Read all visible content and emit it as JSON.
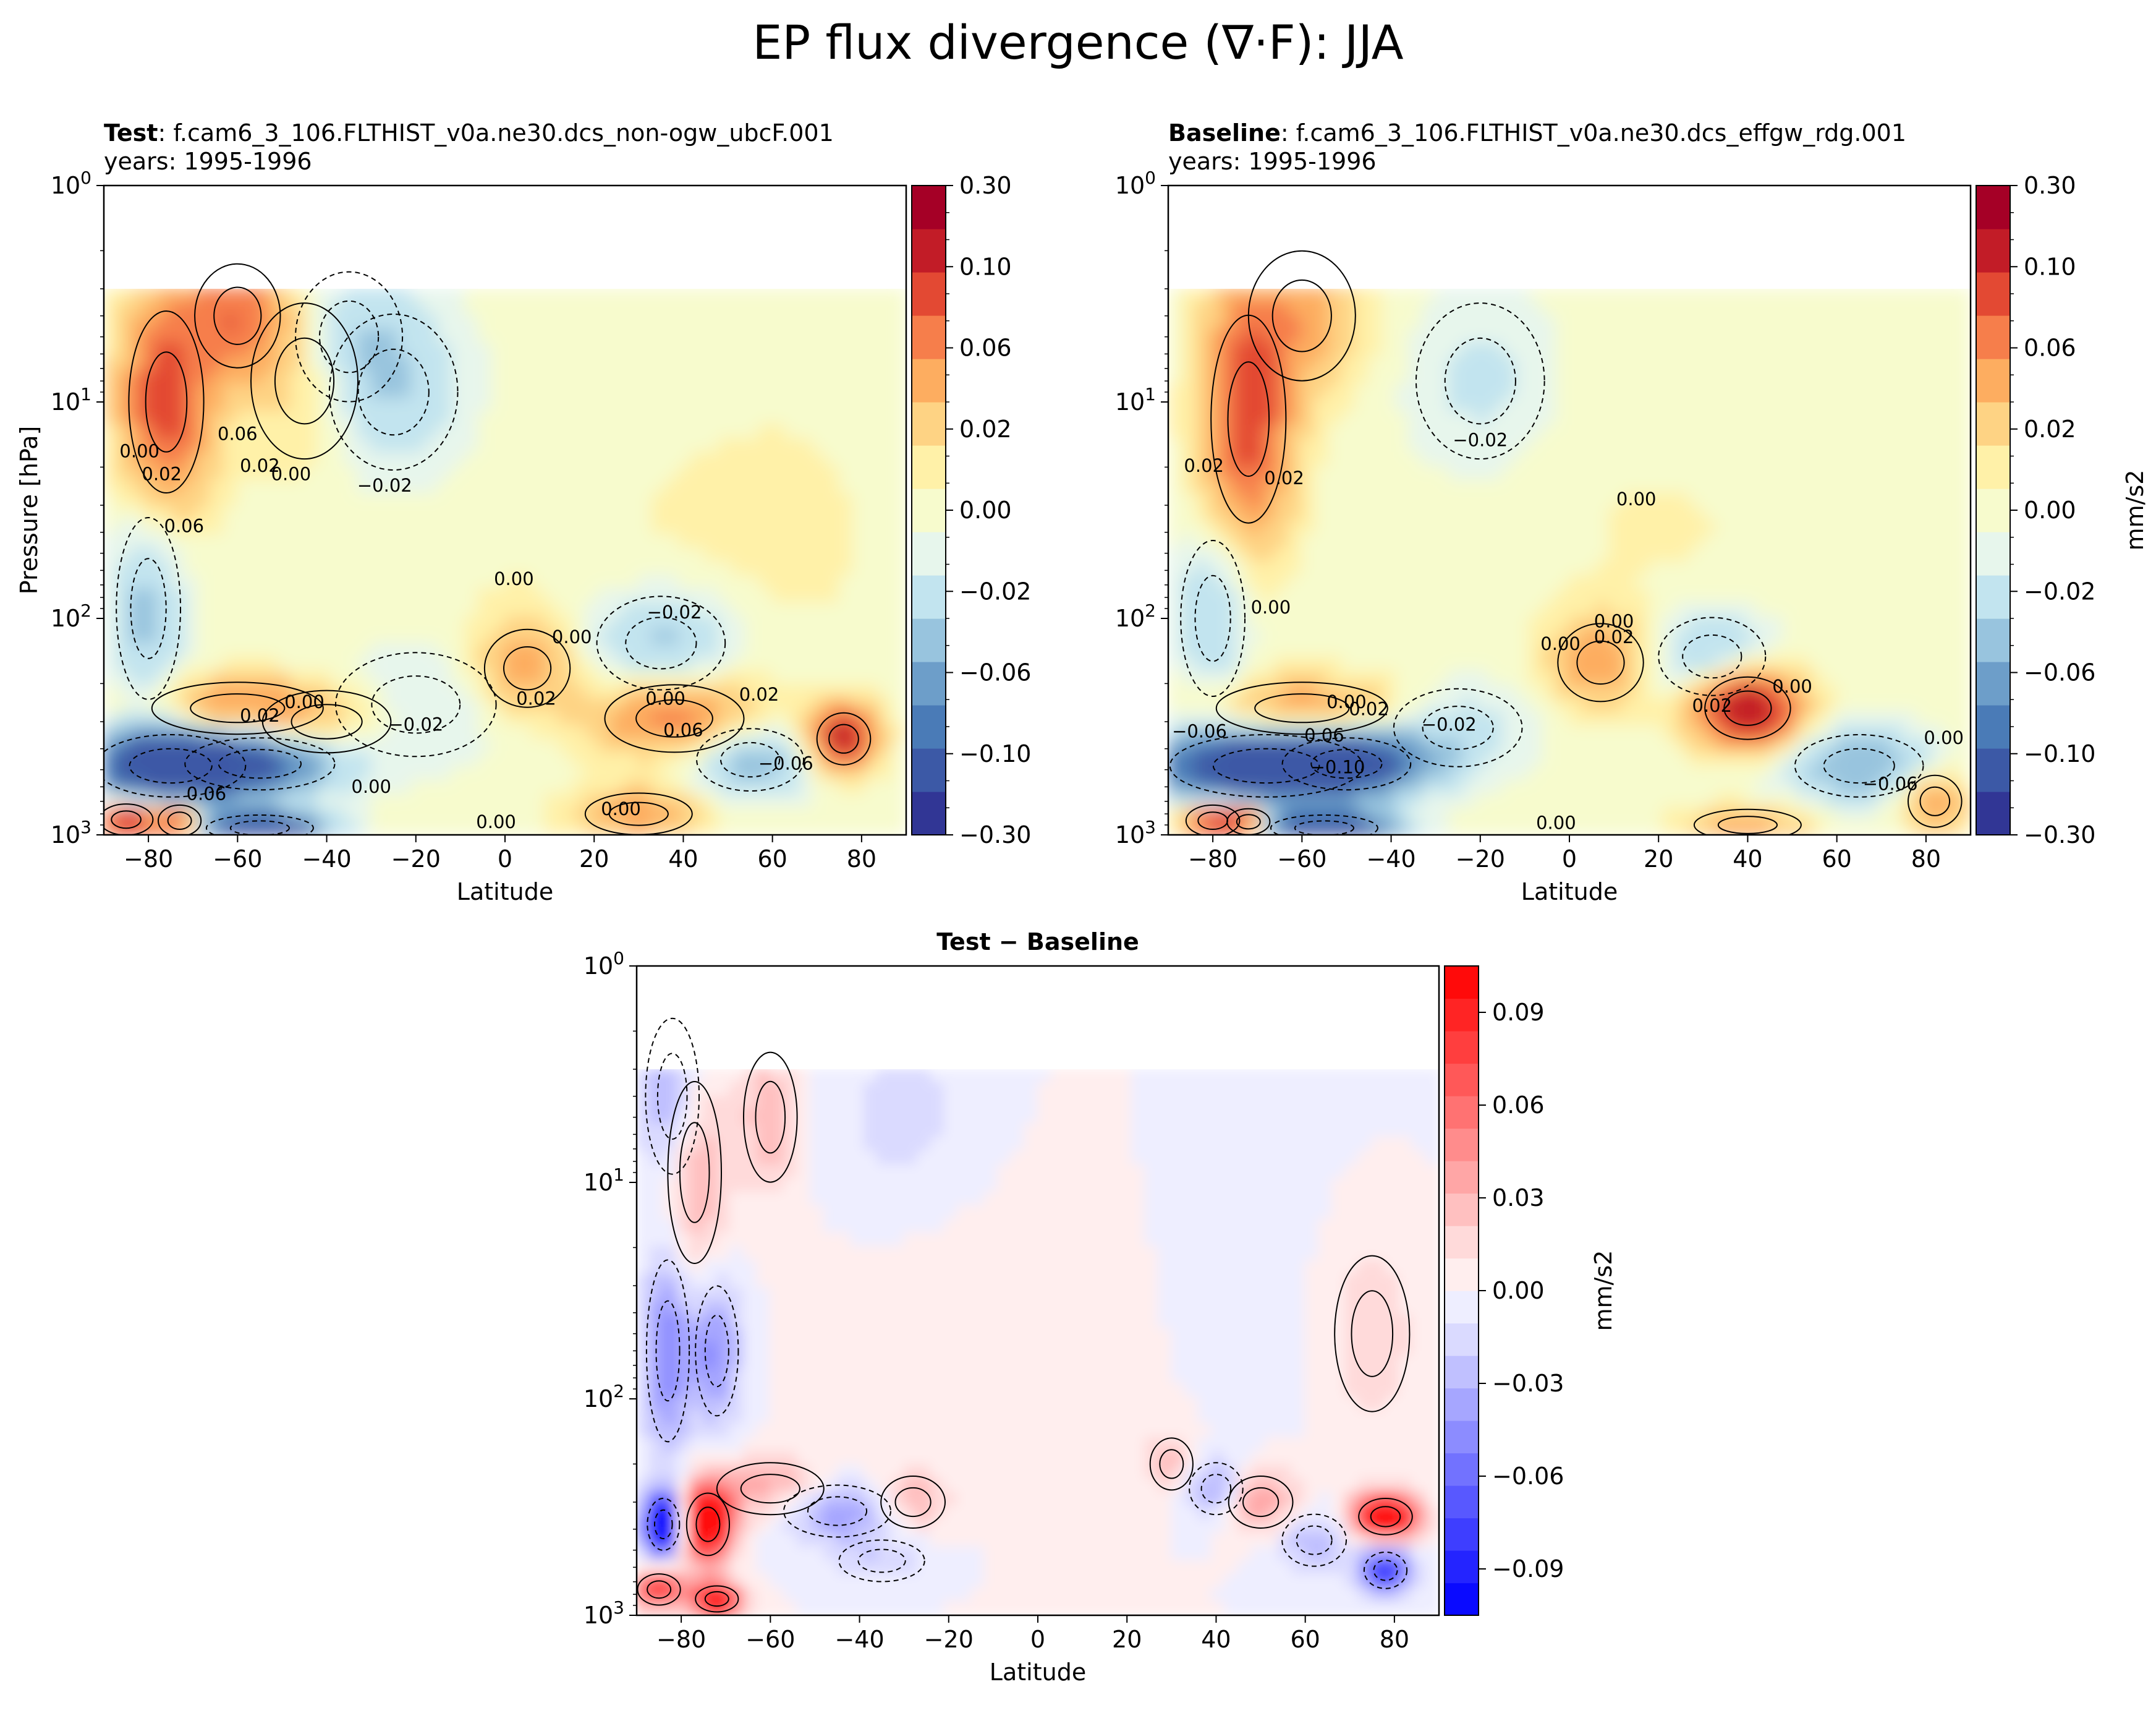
{
  "title": "EP flux divergence (∇·F): JJA",
  "chart_data": [
    {
      "id": "test",
      "type": "heatmap",
      "subtitle_bold": "Test",
      "subtitle_rest": ": f.cam6_3_106.FLTHIST_v0a.ne30.dcs_non-ogw_ubcF.001",
      "subtitle_line2": "years: 1995-1996",
      "xlabel": "Latitude",
      "ylabel": "Pressure [hPa]",
      "xlim": [
        -90,
        90
      ],
      "ylim": [
        1000,
        1
      ],
      "yscale": "log",
      "xticks": [
        -80,
        -60,
        -40,
        -20,
        0,
        20,
        40,
        60,
        80
      ],
      "yticks": [
        {
          "base": "10",
          "exp": "0"
        },
        {
          "base": "10",
          "exp": "1"
        },
        {
          "base": "10",
          "exp": "2"
        },
        {
          "base": "10",
          "exp": "3"
        }
      ],
      "colorbar": {
        "label": "",
        "levels": [
          -0.3,
          -0.1,
          -0.06,
          -0.02,
          0.0,
          0.02,
          0.06,
          0.1,
          0.3
        ],
        "tick_labels": [
          "−0.30",
          "−0.10",
          "−0.06",
          "−0.02",
          "0.00",
          "0.02",
          "0.06",
          "0.10",
          "0.30"
        ],
        "colors": [
          "#313695",
          "#3c59a6",
          "#4a7bb7",
          "#6d9ec9",
          "#98c4de",
          "#c2e4ef",
          "#e7f6ec",
          "#f7fbcd",
          "#fff1a8",
          "#fed384",
          "#fdad60",
          "#f67e4b",
          "#e34933",
          "#c21c27",
          "#a50026"
        ]
      },
      "contour_labels": [
        {
          "text": "0.00",
          "lat": -82,
          "p": 18
        },
        {
          "text": "0.02",
          "lat": -77,
          "p": 23
        },
        {
          "text": "0.06",
          "lat": -60,
          "p": 15
        },
        {
          "text": "0.02",
          "lat": -55,
          "p": 21
        },
        {
          "text": "0.00",
          "lat": -48,
          "p": 23
        },
        {
          "text": "−0.02",
          "lat": -27,
          "p": 26
        },
        {
          "text": "0.06",
          "lat": -72,
          "p": 40
        },
        {
          "text": "0.00",
          "lat": 2,
          "p": 70
        },
        {
          "text": "0.00",
          "lat": 15,
          "p": 130
        },
        {
          "text": "−0.02",
          "lat": 38,
          "p": 100
        },
        {
          "text": "0.00",
          "lat": -45,
          "p": 260
        },
        {
          "text": "0.02",
          "lat": -55,
          "p": 300
        },
        {
          "text": "−0.02",
          "lat": -20,
          "p": 330
        },
        {
          "text": "0.02",
          "lat": 7,
          "p": 250
        },
        {
          "text": "0.00",
          "lat": 36,
          "p": 250
        },
        {
          "text": "0.06",
          "lat": 40,
          "p": 350
        },
        {
          "text": "0.02",
          "lat": 57,
          "p": 240
        },
        {
          "text": "−0.06",
          "lat": 63,
          "p": 500
        },
        {
          "text": "0.00",
          "lat": -30,
          "p": 640
        },
        {
          "text": "0.06",
          "lat": -67,
          "p": 690
        },
        {
          "text": "0.00",
          "lat": 26,
          "p": 810
        },
        {
          "text": "0.00",
          "lat": -2,
          "p": 930
        }
      ]
    },
    {
      "id": "baseline",
      "type": "heatmap",
      "subtitle_bold": "Baseline",
      "subtitle_rest": ": f.cam6_3_106.FLTHIST_v0a.ne30.dcs_effgw_rdg.001",
      "subtitle_line2": "years: 1995-1996",
      "xlabel": "Latitude",
      "ylabel": "",
      "xlim": [
        -90,
        90
      ],
      "ylim": [
        1000,
        1
      ],
      "yscale": "log",
      "xticks": [
        -80,
        -60,
        -40,
        -20,
        0,
        20,
        40,
        60,
        80
      ],
      "yticks": [
        {
          "base": "10",
          "exp": "0"
        },
        {
          "base": "10",
          "exp": "1"
        },
        {
          "base": "10",
          "exp": "2"
        },
        {
          "base": "10",
          "exp": "3"
        }
      ],
      "colorbar": {
        "label": "mm/s2",
        "levels": [
          -0.3,
          -0.1,
          -0.06,
          -0.02,
          0.0,
          0.02,
          0.06,
          0.1,
          0.3
        ],
        "tick_labels": [
          "−0.30",
          "−0.10",
          "−0.06",
          "−0.02",
          "0.00",
          "0.02",
          "0.06",
          "0.10",
          "0.30"
        ],
        "colors": [
          "#313695",
          "#3c59a6",
          "#4a7bb7",
          "#6d9ec9",
          "#98c4de",
          "#c2e4ef",
          "#e7f6ec",
          "#f7fbcd",
          "#fff1a8",
          "#fed384",
          "#fdad60",
          "#f67e4b",
          "#e34933",
          "#c21c27",
          "#a50026"
        ]
      },
      "contour_labels": [
        {
          "text": "0.02",
          "lat": -82,
          "p": 21
        },
        {
          "text": "0.02",
          "lat": -64,
          "p": 24
        },
        {
          "text": "−0.02",
          "lat": -20,
          "p": 16
        },
        {
          "text": "0.00",
          "lat": 15,
          "p": 30
        },
        {
          "text": "0.00",
          "lat": -2,
          "p": 140
        },
        {
          "text": "0.00",
          "lat": -67,
          "p": 95
        },
        {
          "text": "0.00",
          "lat": 10,
          "p": 110
        },
        {
          "text": "0.02",
          "lat": 10,
          "p": 130
        },
        {
          "text": "0.00",
          "lat": -50,
          "p": 260
        },
        {
          "text": "0.02",
          "lat": -45,
          "p": 280
        },
        {
          "text": "−0.06",
          "lat": -83,
          "p": 355
        },
        {
          "text": "0.06",
          "lat": -55,
          "p": 370
        },
        {
          "text": "−0.10",
          "lat": -52,
          "p": 520
        },
        {
          "text": "−0.02",
          "lat": -27,
          "p": 330
        },
        {
          "text": "0.00",
          "lat": 50,
          "p": 220
        },
        {
          "text": "0.02",
          "lat": 32,
          "p": 270
        },
        {
          "text": "−0.06",
          "lat": 72,
          "p": 620
        },
        {
          "text": "0.00",
          "lat": 84,
          "p": 380
        },
        {
          "text": "0.00",
          "lat": -3,
          "p": 940
        }
      ]
    },
    {
      "id": "diff",
      "type": "heatmap",
      "subtitle_bold": "Test − Baseline",
      "subtitle_rest": "",
      "subtitle_line2": "",
      "xlabel": "Latitude",
      "ylabel": "",
      "xlim": [
        -90,
        90
      ],
      "ylim": [
        1000,
        1
      ],
      "yscale": "log",
      "xticks": [
        -80,
        -60,
        -40,
        -20,
        0,
        20,
        40,
        60,
        80
      ],
      "yticks": [
        {
          "base": "10",
          "exp": "0"
        },
        {
          "base": "10",
          "exp": "1"
        },
        {
          "base": "10",
          "exp": "2"
        },
        {
          "base": "10",
          "exp": "3"
        }
      ],
      "colorbar": {
        "label": "mm/s2",
        "vmin": -0.105,
        "vmax": 0.105,
        "ticks": [
          -0.09,
          -0.06,
          -0.03,
          0.0,
          0.03,
          0.06,
          0.09
        ],
        "tick_labels": [
          "−0.09",
          "−0.06",
          "−0.03",
          "0.00",
          "0.03",
          "0.06",
          "0.09"
        ],
        "colors": [
          "#0a0aff",
          "#2424ff",
          "#3e3eff",
          "#5858ff",
          "#7272ff",
          "#8c8cff",
          "#a6a6ff",
          "#c0c0ff",
          "#dadaff",
          "#eeeeff",
          "#ffeeee",
          "#ffdada",
          "#ffc0c0",
          "#ffa6a6",
          "#ff8c8c",
          "#ff7272",
          "#ff5858",
          "#ff3e3e",
          "#ff2424",
          "#ff0a0a"
        ]
      },
      "contour_labels": []
    }
  ]
}
